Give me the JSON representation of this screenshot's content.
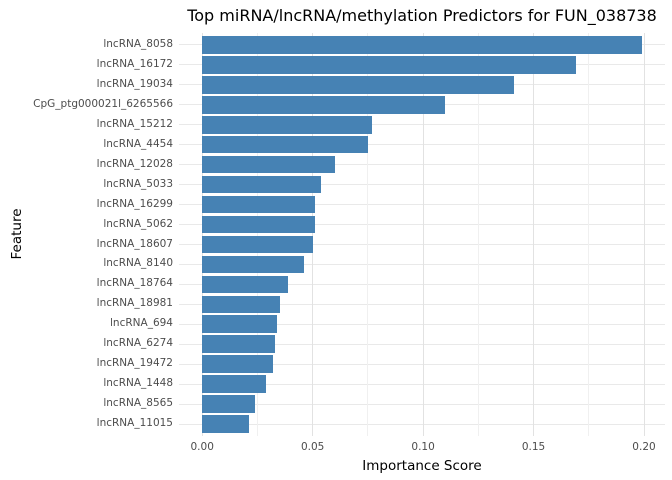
{
  "colors": {
    "bar": "#4682B4",
    "grid_major": "#e2e2e2",
    "grid_minor": "#f0f0f0",
    "tick_text": "#4d4d4d",
    "title_text": "#000000",
    "background": "#ffffff"
  },
  "chart_data": {
    "type": "bar",
    "orientation": "horizontal",
    "title": "Top miRNA/lncRNA/methylation Predictors for FUN_038738",
    "xlabel": "Importance Score",
    "ylabel": "Feature",
    "xlim": [
      0,
      0.21
    ],
    "grid": "major+minor, light gray on white",
    "legend": "none",
    "x_major_ticks": {
      "values": [
        0,
        0.05,
        0.1,
        0.15,
        0.2
      ],
      "labels": [
        "0.00",
        "0.05",
        "0.10",
        "0.15",
        "0.20"
      ]
    },
    "x_minor_ticks": [
      0.025,
      0.075,
      0.125,
      0.175
    ],
    "categories": [
      "lncRNA_8058",
      "lncRNA_16172",
      "lncRNA_19034",
      "CpG_ptg000021l_6265566",
      "lncRNA_15212",
      "lncRNA_4454",
      "lncRNA_12028",
      "lncRNA_5033",
      "lncRNA_16299",
      "lncRNA_5062",
      "lncRNA_18607",
      "lncRNA_8140",
      "lncRNA_18764",
      "lncRNA_18981",
      "lncRNA_694",
      "lncRNA_6274",
      "lncRNA_19472",
      "lncRNA_1448",
      "lncRNA_8565",
      "lncRNA_11015"
    ],
    "values": [
      0.199,
      0.169,
      0.141,
      0.11,
      0.077,
      0.075,
      0.06,
      0.054,
      0.051,
      0.051,
      0.05,
      0.046,
      0.039,
      0.035,
      0.034,
      0.033,
      0.032,
      0.029,
      0.024,
      0.021
    ]
  }
}
